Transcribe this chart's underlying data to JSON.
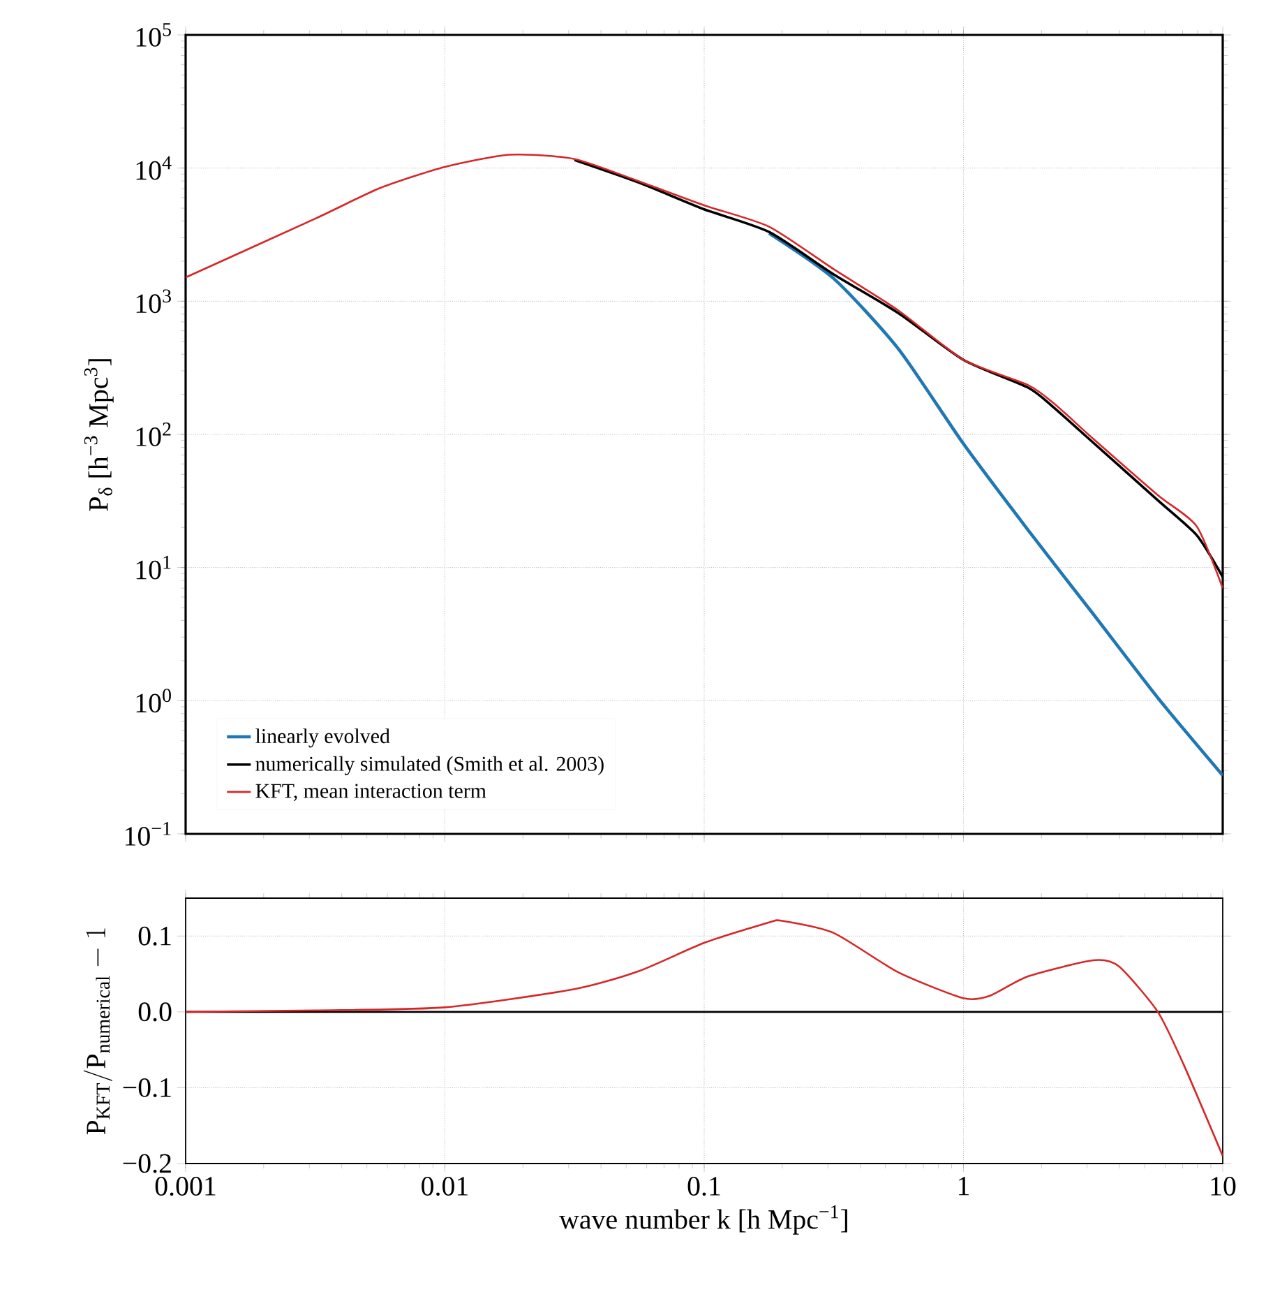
{
  "chart_data": [
    {
      "type": "line",
      "ylabel": "P$_{δ}$ [h$^{−3}$ Mpc$^{3}$]",
      "log": "xy",
      "grid": true,
      "legend": "bottom left",
      "tick_labels": "y",
      "xlim": [
        0.001,
        10
      ],
      "xticks": [
        0.001,
        0.01,
        0.1,
        1,
        10
      ],
      "ylim": [
        0.1,
        100000
      ],
      "yticks": [
        {
          "value": 0.1,
          "label": "10$^{−1}$"
        },
        {
          "value": 1,
          "label": "10$^{0}$"
        },
        {
          "value": 10,
          "label": "10$^{1}$"
        },
        {
          "value": 100,
          "label": "10$^{2}$"
        },
        {
          "value": 1000,
          "label": "10$^{3}$"
        },
        {
          "value": 10000,
          "label": "10$^{4}$"
        },
        {
          "value": 100000,
          "label": "10$^{5}$"
        }
      ],
      "series": [
        {
          "name": "linearly evolved",
          "color": "#1f77b4",
          "x": [
            0.178,
            0.316,
            0.562,
            1,
            1.78,
            3.16,
            5.62,
            10
          ],
          "values": [
            3240,
            1480,
            437,
            85,
            19,
            4.5,
            1.05,
            0.275
          ]
        },
        {
          "name": "numerically simulated (Smith et al. 2003)",
          "color": "#000000",
          "x": [
            0.0316,
            0.0562,
            0.1,
            0.178,
            0.316,
            0.562,
            1,
            1.78,
            2.24,
            3.16,
            5.62,
            7.94,
            10
          ],
          "values": [
            11500,
            7760,
            4900,
            3310,
            1590,
            813,
            363,
            224,
            158,
            87,
            32,
            17.5,
            8.5
          ]
        },
        {
          "name": "KFT, mean interaction term",
          "color": "#d62728",
          "x": [
            0.001,
            0.00316,
            0.00562,
            0.01,
            0.0178,
            0.0316,
            0.0562,
            0.1,
            0.178,
            0.316,
            0.562,
            1,
            1.78,
            2.24,
            3.16,
            5.62,
            7.94,
            10
          ],
          "values": [
            1510,
            4170,
            7080,
            10200,
            12600,
            11700,
            7940,
            5250,
            3630,
            1740,
            851,
            363,
            234,
            170,
            93,
            35,
            20.4,
            7.0
          ]
        }
      ]
    },
    {
      "type": "line",
      "xlabel": "wave number k [h Mpc$^{−1}$]",
      "ylabel": "\\mathrm{P_{KFT}/P_{numerical}} - 1",
      "log": "x",
      "grid": true,
      "xlim": [
        0.001,
        10
      ],
      "xticks": [
        0.001,
        0.01,
        0.1,
        1,
        10
      ],
      "ylim": [
        -0.2,
        0.15
      ],
      "yticks": [
        {
          "value": -0.2,
          "label": "−0.2"
        },
        {
          "value": -0.1,
          "label": "−0.1"
        },
        {
          "value": 0,
          "label": "0.0"
        },
        0.1
      ],
      "ref_lines": [
        {
          "axis": "y",
          "value": 0,
          "color": "#000000"
        }
      ],
      "series": [
        {
          "color": "#d62728",
          "x": [
            0.001,
            0.00316,
            0.01,
            0.0316,
            0.0562,
            0.1,
            0.178,
            0.2,
            0.316,
            0.562,
            1,
            1.26,
            1.78,
            3.16,
            3.98,
            5.62,
            7.08,
            10
          ],
          "values": [
            0,
            0.002,
            0.006,
            0.03,
            0.054,
            0.091,
            0.118,
            0.12,
            0.104,
            0.052,
            0.018,
            0.021,
            0.047,
            0.068,
            0.06,
            0,
            -0.07,
            -0.19
          ]
        }
      ]
    }
  ]
}
